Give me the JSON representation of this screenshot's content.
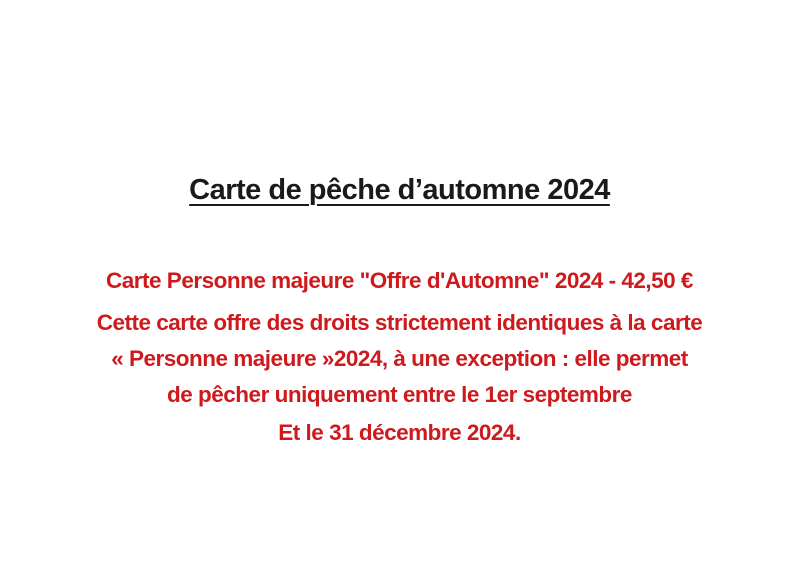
{
  "document": {
    "title": "Carte de pêche d’automne 2024",
    "body_lines": [
      "Carte Personne majeure \"Offre d'Automne\" 2024 - 42,50 €",
      "Cette carte offre des droits strictement identiques à la carte",
      "« Personne majeure »2024, à une exception : elle permet",
      "de pêcher uniquement entre le 1er septembre",
      "Et le 31 décembre 2024."
    ],
    "colors": {
      "page_background": "#ffffff",
      "title_text": "#1a1a1a",
      "body_text": "#cd1a1d"
    }
  }
}
